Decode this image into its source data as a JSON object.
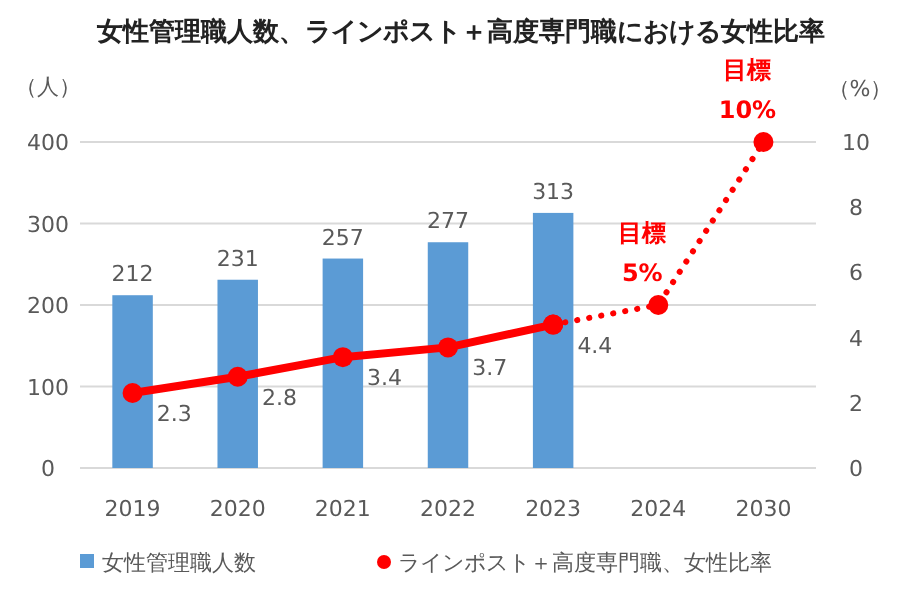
{
  "chart_data": {
    "type": "bar",
    "title": "女性管理職人数、ラインポスト＋高度専門職における女性比率",
    "ylabel": "（人）",
    "y2label": "（%）",
    "categories": [
      "2019",
      "2020",
      "2021",
      "2022",
      "2023",
      "2024",
      "2030"
    ],
    "series": [
      {
        "name": "女性管理職人数",
        "color": "#5b9bd5",
        "values": [
          212,
          231,
          257,
          277,
          313,
          null,
          null
        ],
        "value_labels": [
          "212",
          "231",
          "257",
          "277",
          "313",
          null,
          null
        ]
      },
      {
        "name": "ラインポスト＋高度専門職、女性比率",
        "type": "line",
        "axis": "y2",
        "color": "#ff0000",
        "line_style": "solid",
        "values": [
          2.3,
          2.8,
          3.4,
          3.7,
          4.4,
          null,
          null
        ],
        "value_labels": [
          "2.3",
          "2.8",
          "3.4",
          "3.7",
          "4.4",
          null,
          null
        ]
      },
      {
        "type": "line",
        "axis": "y2",
        "color": "#ff0000",
        "line_style": "dotted",
        "values": [
          null,
          null,
          null,
          null,
          4.4,
          5,
          10
        ],
        "value_labels": [
          null,
          null,
          null,
          null,
          null,
          "目標\n5%",
          "目標\n10%"
        ]
      }
    ],
    "ylim": [
      0,
      400
    ],
    "yticks": [
      0,
      100,
      200,
      300,
      400
    ],
    "y2lim": [
      0,
      10
    ],
    "y2ticks": [
      0,
      2,
      4,
      6,
      8,
      10
    ],
    "grid": "y",
    "legend": "bottom",
    "marker": "circle"
  }
}
